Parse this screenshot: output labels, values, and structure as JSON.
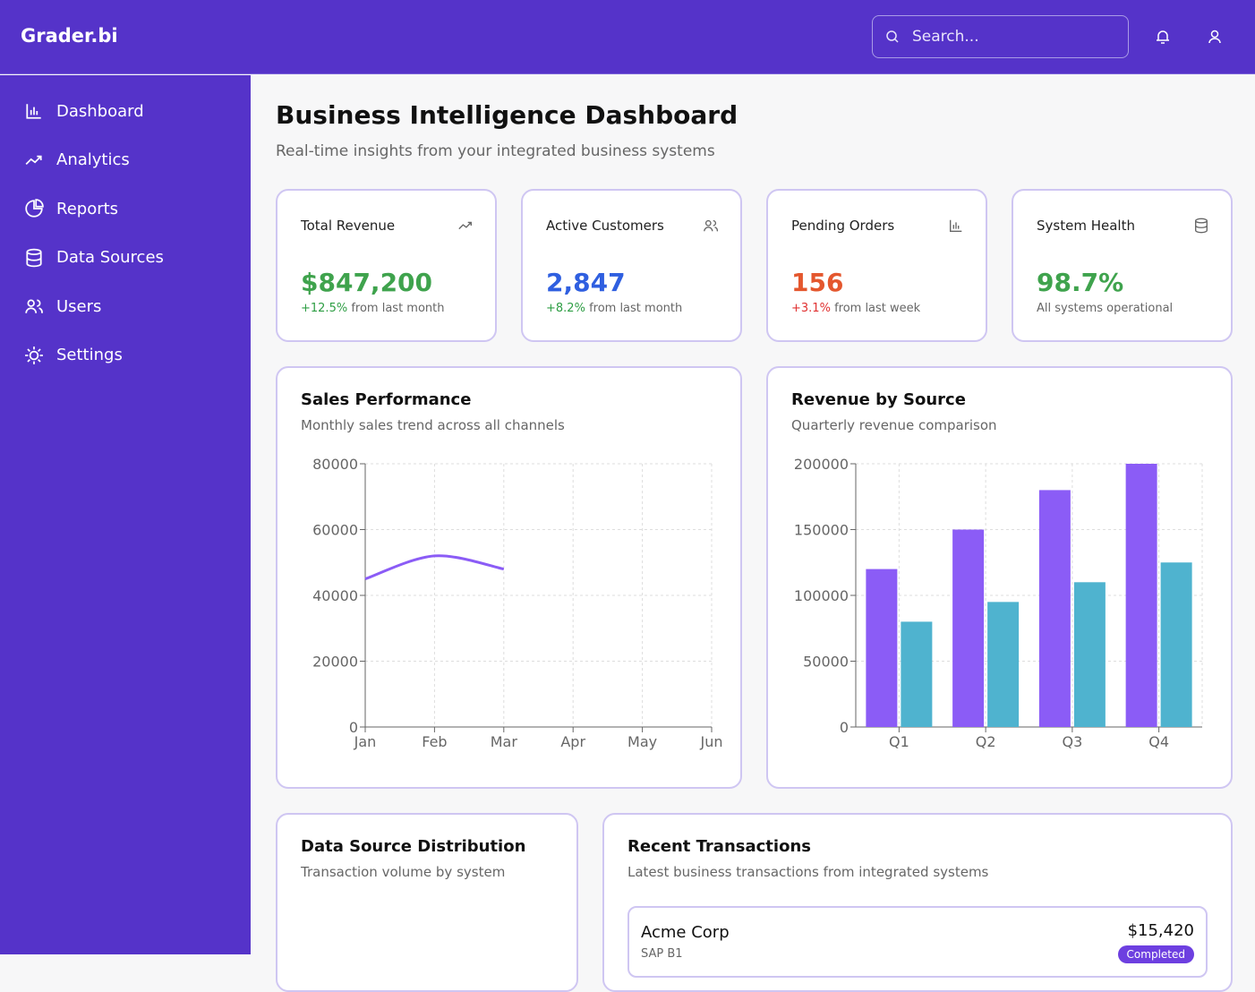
{
  "header": {
    "brand": "Grader.bi",
    "search_placeholder": "Search..."
  },
  "nav": [
    "Dashboard",
    "Analytics",
    "Reports",
    "Data Sources",
    "Users",
    "Settings"
  ],
  "page": {
    "title": "Business Intelligence Dashboard",
    "subtitle": "Real-time insights from your integrated business systems"
  },
  "kpis": [
    {
      "label": "Total Revenue",
      "value": "$847,200",
      "change": "+12.5%",
      "note": "from last month"
    },
    {
      "label": "Active Customers",
      "value": "2,847",
      "change": "+8.2%",
      "note": "from last month"
    },
    {
      "label": "Pending Orders",
      "value": "156",
      "change": "+3.1%",
      "note": "from last week"
    },
    {
      "label": "System Health",
      "value": "98.7%",
      "note": "All systems operational"
    }
  ],
  "chart_data": [
    {
      "type": "line",
      "title": "Sales Performance",
      "subtitle": "Monthly sales trend across all channels",
      "categories": [
        "Jan",
        "Feb",
        "Mar",
        "Apr",
        "May",
        "Jun"
      ],
      "series": [
        {
          "color": "#8b5cf6",
          "values": [
            45000,
            52000,
            48000,
            null,
            null,
            null
          ]
        }
      ],
      "ylim": [
        0,
        80000
      ],
      "yticks": [
        0,
        20000,
        40000,
        60000,
        80000
      ],
      "grid": true
    },
    {
      "type": "bar",
      "title": "Revenue by Source",
      "subtitle": "Quarterly revenue comparison",
      "categories": [
        "Q1",
        "Q2",
        "Q3",
        "Q4"
      ],
      "series": [
        {
          "color": "#8b5cf6",
          "values": [
            120000,
            150000,
            180000,
            200000
          ]
        },
        {
          "color": "#4fb3cf",
          "values": [
            80000,
            95000,
            110000,
            125000
          ]
        }
      ],
      "ylim": [
        0,
        200000
      ],
      "yticks": [
        0,
        50000,
        100000,
        150000,
        200000
      ],
      "grid": true
    }
  ],
  "distribution": {
    "title": "Data Source Distribution",
    "subtitle": "Transaction volume by system"
  },
  "transactions": {
    "title": "Recent Transactions",
    "subtitle": "Latest business transactions from integrated systems",
    "items": [
      {
        "company": "Acme Corp",
        "amount": "$15,420",
        "system": "SAP B1",
        "status": "Completed"
      }
    ]
  }
}
